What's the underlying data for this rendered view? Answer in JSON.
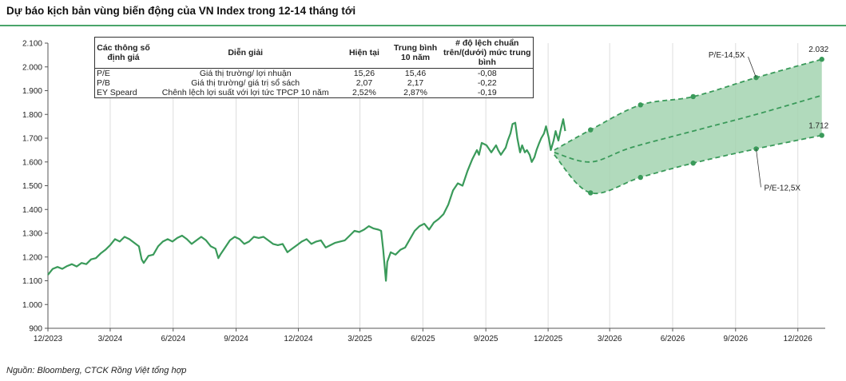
{
  "title": "Dự báo kịch bản vùng biến động của VN Index trong 12-14 tháng tới",
  "source": "Nguồn: Bloomberg, CTCK Rồng Việt tổng hợp",
  "colors": {
    "accent": "#4aa56a",
    "line": "#3a9a5a",
    "band_fill": "#a3d4b0",
    "band_line": "#3a9a5a",
    "grid": "#dddddd"
  },
  "table": {
    "headers": {
      "param": "Các thông số định giá",
      "desc": "Diễn giải",
      "current": "Hiện tại",
      "avg": "Trung bình 10 năm",
      "dev": "# độ lệch chuẩn trên/(dưới) mức trung bình"
    },
    "rows": [
      {
        "param": "P/E",
        "desc": "Giá thị trường/ lợi nhuận",
        "current": "15,26",
        "avg": "15,46",
        "dev": "-0,08"
      },
      {
        "param": "P/B",
        "desc": "Giá thị trường/ giá trị sổ sách",
        "current": "2,07",
        "avg": "2,17",
        "dev": "-0,22"
      },
      {
        "param": "EY Speard",
        "desc": "Chênh lệch lợi suất với lợi tức TPCP 10 năm",
        "current": "2,52%",
        "avg": "2,87%",
        "dev": "-0,19"
      }
    ]
  },
  "chart_data": {
    "type": "line",
    "title": "Dự báo kịch bản vùng biến động của VN Index trong 12-14 tháng tới",
    "x_unit": "month",
    "x_ticks": [
      "12/2023",
      "3/2024",
      "6/2024",
      "9/2024",
      "12/2024",
      "3/2025",
      "6/2025",
      "9/2025",
      "12/2025",
      "3/2026",
      "6/2026",
      "9/2026",
      "12/2026"
    ],
    "x_tick_dates": [
      "2023-12-01",
      "2024-03-01",
      "2024-06-01",
      "2024-09-01",
      "2024-12-01",
      "2025-03-01",
      "2025-06-01",
      "2025-09-01",
      "2025-12-01",
      "2026-03-01",
      "2026-06-01",
      "2026-09-01",
      "2026-12-01"
    ],
    "x_range": [
      "2023-12-01",
      "2027-01-10"
    ],
    "ylim": [
      900,
      2100
    ],
    "y_ticks": [
      "900",
      "1.000",
      "1.100",
      "1.200",
      "1.300",
      "1.400",
      "1.500",
      "1.600",
      "1.700",
      "1.800",
      "1.900",
      "2.000",
      "2.100"
    ],
    "grid": "vertical",
    "series": [
      {
        "kind": "history",
        "points": [
          [
            "2023-12-01",
            1125
          ],
          [
            "2023-12-08",
            1150
          ],
          [
            "2023-12-15",
            1158
          ],
          [
            "2023-12-22",
            1150
          ],
          [
            "2023-12-29",
            1162
          ],
          [
            "2024-01-05",
            1170
          ],
          [
            "2024-01-12",
            1160
          ],
          [
            "2024-01-19",
            1175
          ],
          [
            "2024-01-26",
            1170
          ],
          [
            "2024-02-02",
            1190
          ],
          [
            "2024-02-09",
            1195
          ],
          [
            "2024-02-16",
            1215
          ],
          [
            "2024-02-23",
            1230
          ],
          [
            "2024-03-01",
            1250
          ],
          [
            "2024-03-08",
            1275
          ],
          [
            "2024-03-15",
            1265
          ],
          [
            "2024-03-22",
            1285
          ],
          [
            "2024-03-29",
            1275
          ],
          [
            "2024-04-05",
            1260
          ],
          [
            "2024-04-12",
            1245
          ],
          [
            "2024-04-16",
            1190
          ],
          [
            "2024-04-19",
            1175
          ],
          [
            "2024-04-26",
            1205
          ],
          [
            "2024-05-03",
            1210
          ],
          [
            "2024-05-10",
            1245
          ],
          [
            "2024-05-17",
            1265
          ],
          [
            "2024-05-24",
            1275
          ],
          [
            "2024-05-31",
            1265
          ],
          [
            "2024-06-07",
            1280
          ],
          [
            "2024-06-14",
            1290
          ],
          [
            "2024-06-21",
            1275
          ],
          [
            "2024-06-28",
            1255
          ],
          [
            "2024-07-05",
            1270
          ],
          [
            "2024-07-12",
            1285
          ],
          [
            "2024-07-19",
            1270
          ],
          [
            "2024-07-26",
            1245
          ],
          [
            "2024-08-02",
            1235
          ],
          [
            "2024-08-06",
            1195
          ],
          [
            "2024-08-09",
            1210
          ],
          [
            "2024-08-16",
            1240
          ],
          [
            "2024-08-23",
            1270
          ],
          [
            "2024-08-30",
            1285
          ],
          [
            "2024-09-06",
            1275
          ],
          [
            "2024-09-13",
            1255
          ],
          [
            "2024-09-20",
            1265
          ],
          [
            "2024-09-27",
            1285
          ],
          [
            "2024-10-04",
            1280
          ],
          [
            "2024-10-11",
            1285
          ],
          [
            "2024-10-18",
            1270
          ],
          [
            "2024-10-25",
            1255
          ],
          [
            "2024-11-01",
            1250
          ],
          [
            "2024-11-08",
            1255
          ],
          [
            "2024-11-15",
            1220
          ],
          [
            "2024-11-22",
            1235
          ],
          [
            "2024-11-29",
            1250
          ],
          [
            "2024-12-06",
            1265
          ],
          [
            "2024-12-13",
            1275
          ],
          [
            "2024-12-20",
            1255
          ],
          [
            "2024-12-27",
            1265
          ],
          [
            "2025-01-03",
            1270
          ],
          [
            "2025-01-10",
            1240
          ],
          [
            "2025-01-17",
            1250
          ],
          [
            "2025-01-24",
            1260
          ],
          [
            "2025-02-07",
            1270
          ],
          [
            "2025-02-14",
            1290
          ],
          [
            "2025-02-21",
            1310
          ],
          [
            "2025-02-28",
            1305
          ],
          [
            "2025-03-07",
            1315
          ],
          [
            "2025-03-14",
            1330
          ],
          [
            "2025-03-21",
            1320
          ],
          [
            "2025-03-28",
            1315
          ],
          [
            "2025-04-01",
            1310
          ],
          [
            "2025-04-04",
            1230
          ],
          [
            "2025-04-08",
            1100
          ],
          [
            "2025-04-10",
            1180
          ],
          [
            "2025-04-15",
            1220
          ],
          [
            "2025-04-22",
            1210
          ],
          [
            "2025-04-29",
            1230
          ],
          [
            "2025-05-06",
            1240
          ],
          [
            "2025-05-13",
            1275
          ],
          [
            "2025-05-20",
            1310
          ],
          [
            "2025-05-27",
            1330
          ],
          [
            "2025-06-03",
            1340
          ],
          [
            "2025-06-10",
            1315
          ],
          [
            "2025-06-17",
            1345
          ],
          [
            "2025-06-24",
            1360
          ],
          [
            "2025-07-01",
            1380
          ],
          [
            "2025-07-08",
            1420
          ],
          [
            "2025-07-15",
            1480
          ],
          [
            "2025-07-22",
            1510
          ],
          [
            "2025-07-29",
            1500
          ],
          [
            "2025-08-05",
            1560
          ],
          [
            "2025-08-12",
            1610
          ],
          [
            "2025-08-19",
            1650
          ],
          [
            "2025-08-22",
            1630
          ],
          [
            "2025-08-26",
            1680
          ],
          [
            "2025-09-02",
            1670
          ],
          [
            "2025-09-09",
            1640
          ],
          [
            "2025-09-16",
            1670
          ],
          [
            "2025-09-19",
            1650
          ],
          [
            "2025-09-23",
            1630
          ],
          [
            "2025-09-30",
            1660
          ],
          [
            "2025-10-03",
            1690
          ],
          [
            "2025-10-07",
            1720
          ],
          [
            "2025-10-10",
            1760
          ],
          [
            "2025-10-14",
            1765
          ],
          [
            "2025-10-17",
            1700
          ],
          [
            "2025-10-21",
            1640
          ],
          [
            "2025-10-24",
            1670
          ],
          [
            "2025-10-28",
            1640
          ],
          [
            "2025-10-31",
            1650
          ],
          [
            "2025-11-04",
            1630
          ],
          [
            "2025-11-07",
            1600
          ],
          [
            "2025-11-11",
            1620
          ],
          [
            "2025-11-14",
            1650
          ],
          [
            "2025-11-18",
            1680
          ],
          [
            "2025-11-21",
            1700
          ],
          [
            "2025-11-25",
            1720
          ],
          [
            "2025-11-28",
            1750
          ],
          [
            "2025-12-02",
            1700
          ],
          [
            "2025-12-05",
            1650
          ],
          [
            "2025-12-09",
            1690
          ],
          [
            "2025-12-12",
            1730
          ],
          [
            "2025-12-16",
            1690
          ],
          [
            "2025-12-19",
            1730
          ],
          [
            "2025-12-23",
            1780
          ],
          [
            "2025-12-26",
            1730
          ]
        ]
      },
      {
        "name": "P/E-14,5X",
        "kind": "upper_bound",
        "end_label": "2.032",
        "points": [
          [
            "2025-12-10",
            1650
          ],
          [
            "2026-02-01",
            1735
          ],
          [
            "2026-04-15",
            1840
          ],
          [
            "2026-07-01",
            1875
          ],
          [
            "2026-10-01",
            1955
          ],
          [
            "2027-01-05",
            2032
          ]
        ]
      },
      {
        "kind": "mid_dashed",
        "points": [
          [
            "2025-12-10",
            1640
          ],
          [
            "2026-02-01",
            1600
          ],
          [
            "2026-04-01",
            1660
          ],
          [
            "2026-07-01",
            1730
          ],
          [
            "2026-10-01",
            1800
          ],
          [
            "2027-01-05",
            1880
          ]
        ]
      },
      {
        "name": "P/E-12,5X",
        "kind": "lower_bound",
        "end_label": "1.712",
        "points": [
          [
            "2025-12-10",
            1630
          ],
          [
            "2026-02-01",
            1470
          ],
          [
            "2026-04-15",
            1535
          ],
          [
            "2026-07-01",
            1595
          ],
          [
            "2026-10-01",
            1655
          ],
          [
            "2027-01-05",
            1712
          ]
        ]
      }
    ]
  }
}
